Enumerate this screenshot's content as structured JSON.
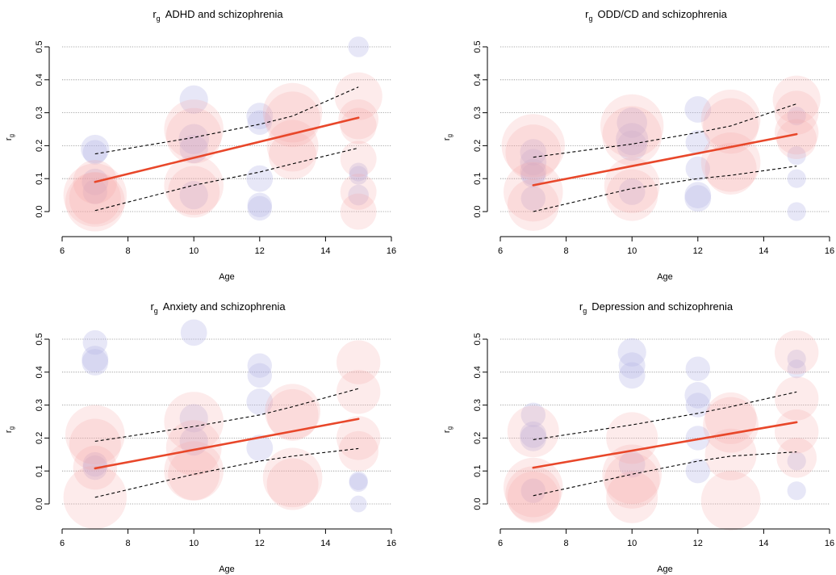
{
  "colors": {
    "trend": "#e8472a",
    "bubble_pos": "#f6a6a6",
    "bubble_neg": "#b3b3e6",
    "ci": "#000000",
    "grid": "#8c8c8c"
  },
  "chart_data": [
    {
      "type": "scatter",
      "title_main": "r",
      "title_sub": "g",
      "title_rest": "ADHD and schizophrenia",
      "xlabel": "Age",
      "ylabel_main": "r",
      "ylabel_sub": "g",
      "xlim": [
        6,
        16
      ],
      "ylim": [
        0,
        0.5
      ],
      "xticks": [
        "6",
        "8",
        "10",
        "12",
        "14",
        "16"
      ],
      "yticks": [
        "0.0",
        "0.1",
        "0.2",
        "0.3",
        "0.4",
        "0.5"
      ],
      "grid": true,
      "trend": {
        "x": [
          7,
          15
        ],
        "y": [
          0.09,
          0.285
        ]
      },
      "ci_upper": {
        "x": [
          7,
          10,
          12,
          13,
          15
        ],
        "y": [
          0.175,
          0.225,
          0.265,
          0.29,
          0.378
        ]
      },
      "ci_lower": {
        "x": [
          7,
          10,
          12,
          13,
          15
        ],
        "y": [
          0.003,
          0.08,
          0.12,
          0.145,
          0.193
        ]
      },
      "points": [
        {
          "x": 7,
          "y": 0.19,
          "w": 0.4,
          "g": 0
        },
        {
          "x": 7,
          "y": 0.18,
          "w": 0.3,
          "g": 0
        },
        {
          "x": 7,
          "y": 0.09,
          "w": 0.35,
          "g": 0
        },
        {
          "x": 7,
          "y": 0.06,
          "w": 0.3,
          "g": 0
        },
        {
          "x": 7,
          "y": 0.05,
          "w": 1.3,
          "g": 1
        },
        {
          "x": 7,
          "y": 0.03,
          "w": 1.2,
          "g": 1
        },
        {
          "x": 7,
          "y": 0.04,
          "w": 1.0,
          "g": 1
        },
        {
          "x": 7,
          "y": 0.09,
          "w": 0.8,
          "g": 1
        },
        {
          "x": 10,
          "y": 0.34,
          "w": 0.4,
          "g": 0
        },
        {
          "x": 10,
          "y": 0.22,
          "w": 0.45,
          "g": 0
        },
        {
          "x": 10,
          "y": 0.19,
          "w": 0.4,
          "g": 0
        },
        {
          "x": 10,
          "y": 0.05,
          "w": 0.4,
          "g": 0
        },
        {
          "x": 10,
          "y": 0.25,
          "w": 1.2,
          "g": 1
        },
        {
          "x": 10,
          "y": 0.23,
          "w": 1.1,
          "g": 1
        },
        {
          "x": 10,
          "y": 0.08,
          "w": 1.2,
          "g": 1
        },
        {
          "x": 10,
          "y": 0.06,
          "w": 1.0,
          "g": 1
        },
        {
          "x": 12,
          "y": 0.29,
          "w": 0.35,
          "g": 0
        },
        {
          "x": 12,
          "y": 0.27,
          "w": 0.3,
          "g": 0
        },
        {
          "x": 12,
          "y": 0.1,
          "w": 0.35,
          "g": 0
        },
        {
          "x": 12,
          "y": 0.02,
          "w": 0.3,
          "g": 0
        },
        {
          "x": 12,
          "y": 0.01,
          "w": 0.3,
          "g": 0
        },
        {
          "x": 13,
          "y": 0.3,
          "w": 1.2,
          "g": 1
        },
        {
          "x": 13,
          "y": 0.28,
          "w": 1.1,
          "g": 1
        },
        {
          "x": 13,
          "y": 0.2,
          "w": 1.0,
          "g": 1
        },
        {
          "x": 13,
          "y": 0.17,
          "w": 0.9,
          "g": 1
        },
        {
          "x": 15,
          "y": 0.5,
          "w": 0.2,
          "g": 0
        },
        {
          "x": 15,
          "y": 0.12,
          "w": 0.15,
          "g": 0
        },
        {
          "x": 15,
          "y": 0.11,
          "w": 0.15,
          "g": 0
        },
        {
          "x": 15,
          "y": 0.05,
          "w": 0.2,
          "g": 0
        },
        {
          "x": 15,
          "y": 0.35,
          "w": 0.9,
          "g": 1
        },
        {
          "x": 15,
          "y": 0.28,
          "w": 0.7,
          "g": 1
        },
        {
          "x": 15,
          "y": 0.26,
          "w": 0.6,
          "g": 1
        },
        {
          "x": 15,
          "y": 0.16,
          "w": 0.6,
          "g": 1
        },
        {
          "x": 15,
          "y": 0.06,
          "w": 0.6,
          "g": 1
        },
        {
          "x": 15,
          "y": 0.0,
          "w": 0.6,
          "g": 1
        }
      ]
    },
    {
      "type": "scatter",
      "title_main": "r",
      "title_sub": "g",
      "title_rest": "ODD/CD and schizophrenia",
      "xlabel": "Age",
      "ylabel_main": "r",
      "ylabel_sub": "g",
      "xlim": [
        6,
        16
      ],
      "ylim": [
        0,
        0.5
      ],
      "xticks": [
        "6",
        "8",
        "10",
        "12",
        "14",
        "16"
      ],
      "yticks": [
        "0.0",
        "0.1",
        "0.2",
        "0.3",
        "0.4",
        "0.5"
      ],
      "grid": true,
      "trend": {
        "x": [
          7,
          15
        ],
        "y": [
          0.08,
          0.235
        ]
      },
      "ci_upper": {
        "x": [
          7,
          10,
          12,
          13,
          15
        ],
        "y": [
          0.165,
          0.205,
          0.24,
          0.26,
          0.327
        ]
      },
      "ci_lower": {
        "x": [
          7,
          10,
          12,
          13,
          15
        ],
        "y": [
          0.0,
          0.07,
          0.1,
          0.11,
          0.138
        ]
      },
      "points": [
        {
          "x": 7,
          "y": 0.18,
          "w": 0.35,
          "g": 0
        },
        {
          "x": 7,
          "y": 0.15,
          "w": 0.35,
          "g": 0
        },
        {
          "x": 7,
          "y": 0.12,
          "w": 0.35,
          "g": 0
        },
        {
          "x": 7,
          "y": 0.11,
          "w": 0.3,
          "g": 0
        },
        {
          "x": 7,
          "y": 0.04,
          "w": 0.3,
          "g": 0
        },
        {
          "x": 7,
          "y": 0.2,
          "w": 1.3,
          "g": 1
        },
        {
          "x": 7,
          "y": 0.18,
          "w": 1.1,
          "g": 1
        },
        {
          "x": 7,
          "y": 0.06,
          "w": 1.2,
          "g": 1
        },
        {
          "x": 7,
          "y": 0.02,
          "w": 1.0,
          "g": 1
        },
        {
          "x": 10,
          "y": 0.27,
          "w": 0.45,
          "g": 0
        },
        {
          "x": 10,
          "y": 0.22,
          "w": 0.5,
          "g": 0
        },
        {
          "x": 10,
          "y": 0.2,
          "w": 0.45,
          "g": 0
        },
        {
          "x": 10,
          "y": 0.06,
          "w": 0.35,
          "g": 0
        },
        {
          "x": 10,
          "y": 0.26,
          "w": 1.3,
          "g": 1
        },
        {
          "x": 10,
          "y": 0.23,
          "w": 1.2,
          "g": 1
        },
        {
          "x": 10,
          "y": 0.08,
          "w": 1.1,
          "g": 1
        },
        {
          "x": 10,
          "y": 0.05,
          "w": 1.0,
          "g": 1
        },
        {
          "x": 12,
          "y": 0.31,
          "w": 0.35,
          "g": 0
        },
        {
          "x": 12,
          "y": 0.21,
          "w": 0.3,
          "g": 0
        },
        {
          "x": 12,
          "y": 0.13,
          "w": 0.3,
          "g": 0
        },
        {
          "x": 12,
          "y": 0.05,
          "w": 0.35,
          "g": 0
        },
        {
          "x": 12,
          "y": 0.04,
          "w": 0.35,
          "g": 0
        },
        {
          "x": 13,
          "y": 0.28,
          "w": 1.2,
          "g": 1
        },
        {
          "x": 13,
          "y": 0.26,
          "w": 1.1,
          "g": 1
        },
        {
          "x": 13,
          "y": 0.15,
          "w": 1.2,
          "g": 1
        },
        {
          "x": 13,
          "y": 0.13,
          "w": 1.0,
          "g": 1
        },
        {
          "x": 15,
          "y": 0.29,
          "w": 0.15,
          "g": 0
        },
        {
          "x": 15,
          "y": 0.17,
          "w": 0.15,
          "g": 0
        },
        {
          "x": 15,
          "y": 0.1,
          "w": 0.15,
          "g": 0
        },
        {
          "x": 15,
          "y": 0.0,
          "w": 0.15,
          "g": 0
        },
        {
          "x": 15,
          "y": 0.34,
          "w": 0.9,
          "g": 1
        },
        {
          "x": 15,
          "y": 0.3,
          "w": 0.8,
          "g": 1
        },
        {
          "x": 15,
          "y": 0.24,
          "w": 0.8,
          "g": 1
        },
        {
          "x": 15,
          "y": 0.22,
          "w": 0.7,
          "g": 1
        }
      ]
    },
    {
      "type": "scatter",
      "title_main": "r",
      "title_sub": "g",
      "title_rest": "Anxiety and schizophrenia",
      "xlabel": "Age",
      "ylabel_main": "r",
      "ylabel_sub": "g",
      "xlim": [
        6,
        16
      ],
      "ylim": [
        0,
        0.5
      ],
      "xticks": [
        "6",
        "8",
        "10",
        "12",
        "14",
        "16"
      ],
      "yticks": [
        "0.0",
        "0.1",
        "0.2",
        "0.3",
        "0.4",
        "0.5"
      ],
      "grid": true,
      "trend": {
        "x": [
          7,
          15
        ],
        "y": [
          0.108,
          0.258
        ]
      },
      "ci_upper": {
        "x": [
          7,
          10,
          12,
          13,
          15
        ],
        "y": [
          0.19,
          0.235,
          0.27,
          0.295,
          0.35
        ]
      },
      "ci_lower": {
        "x": [
          7,
          10,
          12,
          13,
          15
        ],
        "y": [
          0.02,
          0.09,
          0.13,
          0.145,
          0.168
        ]
      },
      "points": [
        {
          "x": 7,
          "y": 0.49,
          "w": 0.3,
          "g": 0
        },
        {
          "x": 7,
          "y": 0.44,
          "w": 0.35,
          "g": 0
        },
        {
          "x": 7,
          "y": 0.43,
          "w": 0.35,
          "g": 0
        },
        {
          "x": 7,
          "y": 0.12,
          "w": 0.3,
          "g": 0
        },
        {
          "x": 7,
          "y": 0.11,
          "w": 0.3,
          "g": 0
        },
        {
          "x": 7,
          "y": 0.21,
          "w": 1.2,
          "g": 1
        },
        {
          "x": 7,
          "y": 0.18,
          "w": 1.0,
          "g": 1
        },
        {
          "x": 7,
          "y": 0.11,
          "w": 0.8,
          "g": 1
        },
        {
          "x": 7,
          "y": 0.02,
          "w": 1.3,
          "g": 1
        },
        {
          "x": 10,
          "y": 0.52,
          "w": 0.35,
          "g": 0
        },
        {
          "x": 10,
          "y": 0.26,
          "w": 0.4,
          "g": 0
        },
        {
          "x": 10,
          "y": 0.19,
          "w": 0.4,
          "g": 0
        },
        {
          "x": 10,
          "y": 0.25,
          "w": 1.2,
          "g": 1
        },
        {
          "x": 10,
          "y": 0.17,
          "w": 1.1,
          "g": 1
        },
        {
          "x": 10,
          "y": 0.1,
          "w": 1.2,
          "g": 1
        },
        {
          "x": 10,
          "y": 0.09,
          "w": 1.0,
          "g": 1
        },
        {
          "x": 12,
          "y": 0.42,
          "w": 0.3,
          "g": 0
        },
        {
          "x": 12,
          "y": 0.39,
          "w": 0.3,
          "g": 0
        },
        {
          "x": 12,
          "y": 0.31,
          "w": 0.35,
          "g": 0
        },
        {
          "x": 12,
          "y": 0.17,
          "w": 0.35,
          "g": 0
        },
        {
          "x": 13,
          "y": 0.28,
          "w": 1.1,
          "g": 1
        },
        {
          "x": 13,
          "y": 0.27,
          "w": 1.0,
          "g": 1
        },
        {
          "x": 13,
          "y": 0.08,
          "w": 1.2,
          "g": 1
        },
        {
          "x": 13,
          "y": 0.06,
          "w": 1.0,
          "g": 1
        },
        {
          "x": 15,
          "y": 0.07,
          "w": 0.15,
          "g": 0
        },
        {
          "x": 15,
          "y": 0.065,
          "w": 0.15,
          "g": 0
        },
        {
          "x": 15,
          "y": 0.0,
          "w": 0.1,
          "g": 0
        },
        {
          "x": 15,
          "y": 0.43,
          "w": 0.8,
          "g": 1
        },
        {
          "x": 15,
          "y": 0.34,
          "w": 0.8,
          "g": 1
        },
        {
          "x": 15,
          "y": 0.2,
          "w": 0.8,
          "g": 1
        },
        {
          "x": 15,
          "y": 0.16,
          "w": 0.7,
          "g": 1
        }
      ]
    },
    {
      "type": "scatter",
      "title_main": "r",
      "title_sub": "g",
      "title_rest": "Depression and schizophrenia",
      "xlabel": "Age",
      "ylabel_main": "r",
      "ylabel_sub": "g",
      "xlim": [
        6,
        16
      ],
      "ylim": [
        0,
        0.5
      ],
      "xticks": [
        "6",
        "8",
        "10",
        "12",
        "14",
        "16"
      ],
      "yticks": [
        "0.0",
        "0.1",
        "0.2",
        "0.3",
        "0.4",
        "0.5"
      ],
      "grid": true,
      "trend": {
        "x": [
          7,
          15
        ],
        "y": [
          0.11,
          0.248
        ]
      },
      "ci_upper": {
        "x": [
          7,
          10,
          12,
          13,
          15
        ],
        "y": [
          0.195,
          0.24,
          0.275,
          0.295,
          0.34
        ]
      },
      "ci_lower": {
        "x": [
          7,
          10,
          12,
          13,
          15
        ],
        "y": [
          0.025,
          0.09,
          0.13,
          0.145,
          0.158
        ]
      },
      "points": [
        {
          "x": 7,
          "y": 0.27,
          "w": 0.3,
          "g": 0
        },
        {
          "x": 7,
          "y": 0.21,
          "w": 0.35,
          "g": 0
        },
        {
          "x": 7,
          "y": 0.2,
          "w": 0.35,
          "g": 0
        },
        {
          "x": 7,
          "y": 0.04,
          "w": 0.3,
          "g": 0
        },
        {
          "x": 7,
          "y": 0.22,
          "w": 1.0,
          "g": 1
        },
        {
          "x": 7,
          "y": 0.05,
          "w": 1.2,
          "g": 1
        },
        {
          "x": 7,
          "y": 0.03,
          "w": 1.1,
          "g": 1
        },
        {
          "x": 7,
          "y": 0.02,
          "w": 1.0,
          "g": 1
        },
        {
          "x": 10,
          "y": 0.46,
          "w": 0.4,
          "g": 0
        },
        {
          "x": 10,
          "y": 0.42,
          "w": 0.35,
          "g": 0
        },
        {
          "x": 10,
          "y": 0.39,
          "w": 0.35,
          "g": 0
        },
        {
          "x": 10,
          "y": 0.12,
          "w": 0.35,
          "g": 0
        },
        {
          "x": 10,
          "y": 0.2,
          "w": 1.0,
          "g": 1
        },
        {
          "x": 10,
          "y": 0.09,
          "w": 1.2,
          "g": 1
        },
        {
          "x": 10,
          "y": 0.07,
          "w": 1.1,
          "g": 1
        },
        {
          "x": 10,
          "y": 0.02,
          "w": 1.0,
          "g": 1
        },
        {
          "x": 12,
          "y": 0.41,
          "w": 0.3,
          "g": 0
        },
        {
          "x": 12,
          "y": 0.33,
          "w": 0.35,
          "g": 0
        },
        {
          "x": 12,
          "y": 0.3,
          "w": 0.3,
          "g": 0
        },
        {
          "x": 12,
          "y": 0.2,
          "w": 0.3,
          "g": 0
        },
        {
          "x": 12,
          "y": 0.1,
          "w": 0.3,
          "g": 0
        },
        {
          "x": 13,
          "y": 0.26,
          "w": 1.0,
          "g": 1
        },
        {
          "x": 13,
          "y": 0.24,
          "w": 1.1,
          "g": 1
        },
        {
          "x": 13,
          "y": 0.15,
          "w": 1.0,
          "g": 1
        },
        {
          "x": 13,
          "y": 0.01,
          "w": 1.2,
          "g": 1
        },
        {
          "x": 15,
          "y": 0.44,
          "w": 0.15,
          "g": 0
        },
        {
          "x": 15,
          "y": 0.41,
          "w": 0.15,
          "g": 0
        },
        {
          "x": 15,
          "y": 0.13,
          "w": 0.15,
          "g": 0
        },
        {
          "x": 15,
          "y": 0.04,
          "w": 0.15,
          "g": 0
        },
        {
          "x": 15,
          "y": 0.46,
          "w": 0.8,
          "g": 1
        },
        {
          "x": 15,
          "y": 0.32,
          "w": 0.8,
          "g": 1
        },
        {
          "x": 15,
          "y": 0.22,
          "w": 0.8,
          "g": 1
        },
        {
          "x": 15,
          "y": 0.14,
          "w": 0.7,
          "g": 1
        }
      ]
    }
  ]
}
